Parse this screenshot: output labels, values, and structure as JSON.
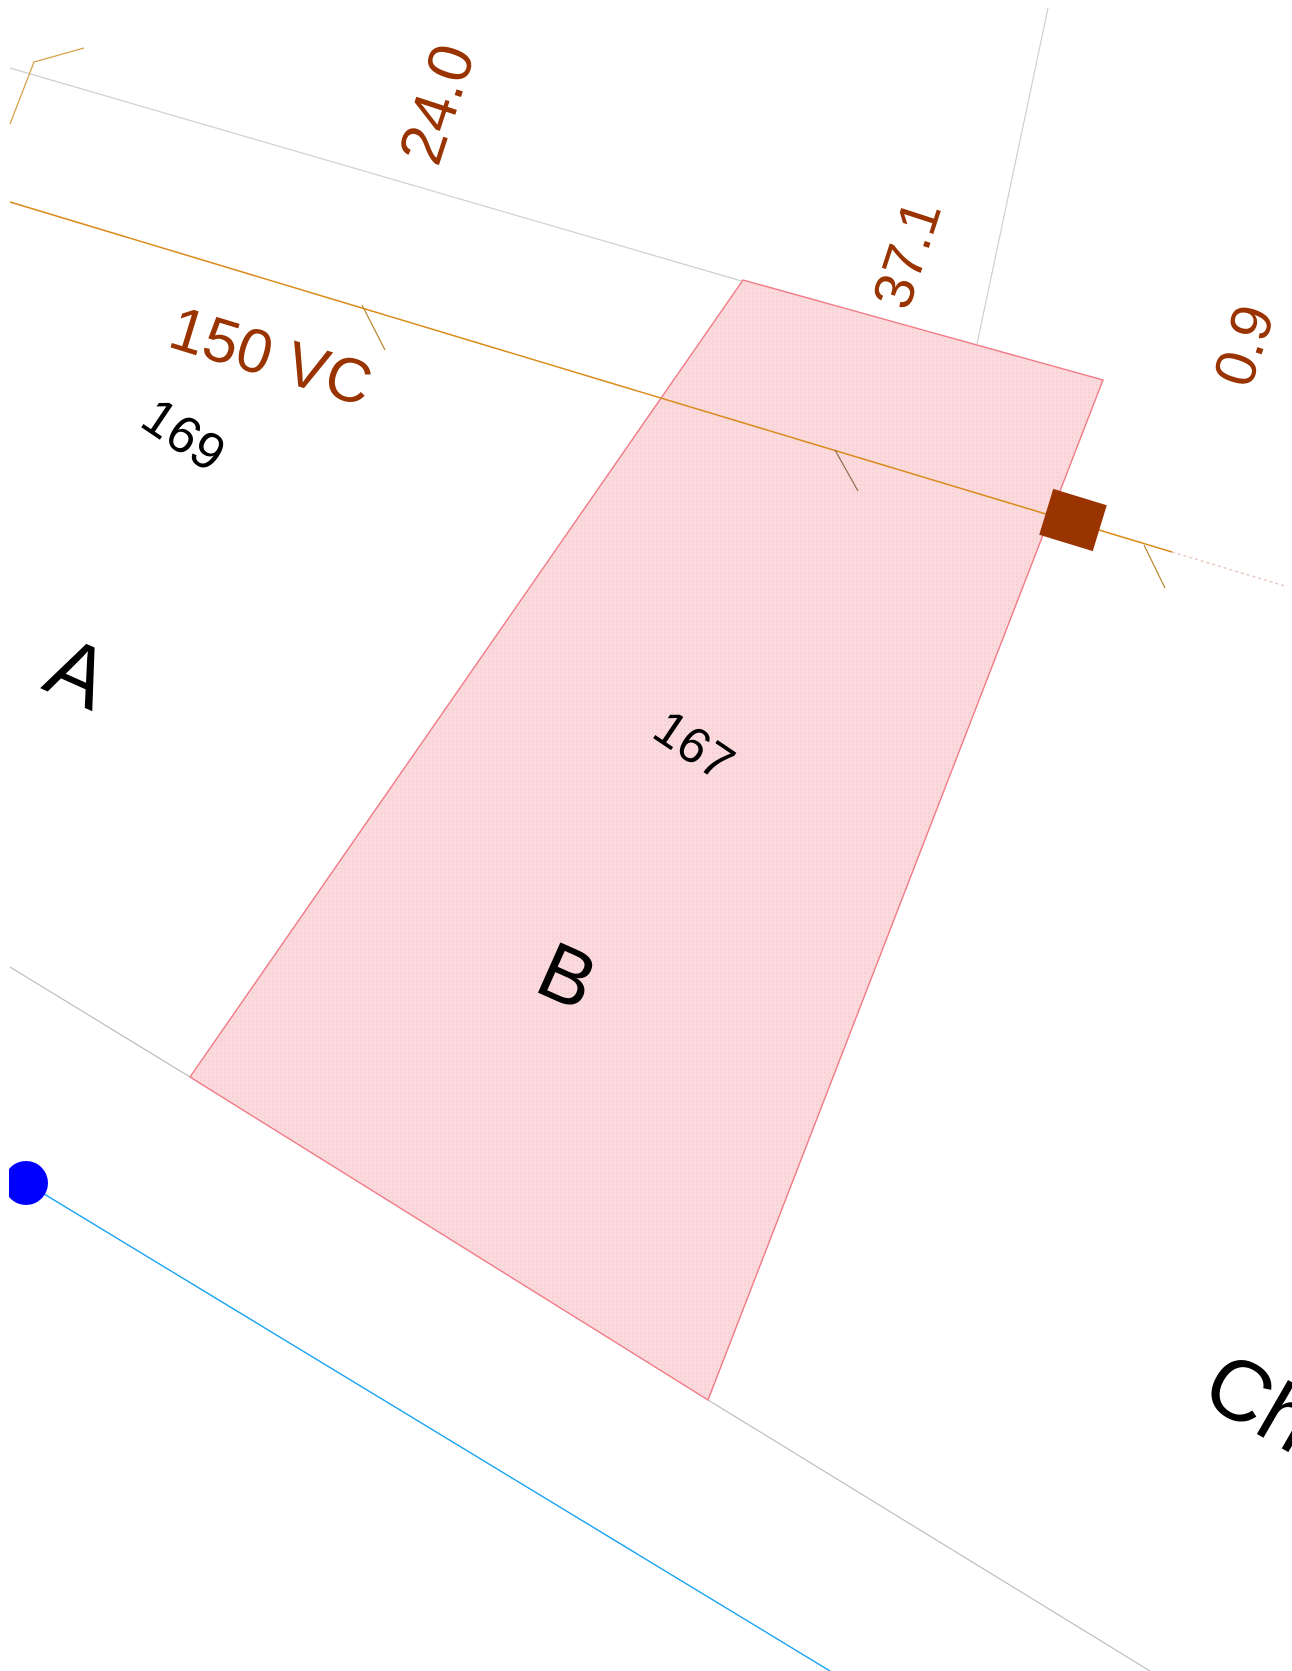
{
  "map": {
    "labels": {
      "dim_24": "24.0",
      "dim_37": "37.1",
      "dim_09": "0.9",
      "pipe": "150 VC",
      "parcel_169": "169",
      "parcel_167": "167",
      "block_a": "A",
      "block_b": "B",
      "street_partial": "Ch"
    },
    "colors": {
      "dimension_text": "#993300",
      "parcel_text": "#000000",
      "highlight_fill": "#fbd9dc",
      "highlight_stroke": "#f07a85",
      "sewer_line": "#d98a1a",
      "lot_line": "#c8c8c8",
      "water_line": "#1aa3f0",
      "hydrant": "#0000ff",
      "manhole": "#993300"
    }
  }
}
